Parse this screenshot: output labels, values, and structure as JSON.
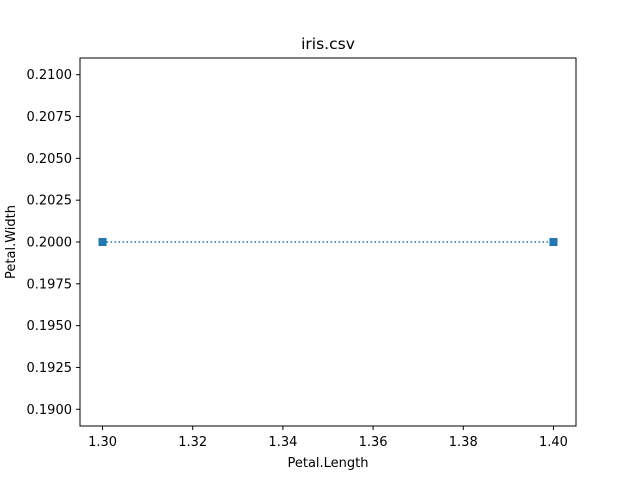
{
  "chart_data": {
    "type": "line",
    "title": "iris.csv",
    "xlabel": "Petal.Length",
    "ylabel": "Petal.Width",
    "xlim": [
      1.295,
      1.405
    ],
    "ylim": [
      0.189,
      0.211
    ],
    "xticks": [
      1.3,
      1.32,
      1.34,
      1.36,
      1.38,
      1.4
    ],
    "xtick_labels": [
      "1.30",
      "1.32",
      "1.34",
      "1.36",
      "1.38",
      "1.40"
    ],
    "yticks": [
      0.19,
      0.1925,
      0.195,
      0.1975,
      0.2,
      0.2025,
      0.205,
      0.2075,
      0.21
    ],
    "ytick_labels": [
      "0.1900",
      "0.1925",
      "0.1950",
      "0.1975",
      "0.2000",
      "0.2025",
      "0.2050",
      "0.2075",
      "0.2100"
    ],
    "grid": false,
    "series": [
      {
        "name": "Petal.Width",
        "x": [
          1.3,
          1.4
        ],
        "y": [
          0.2,
          0.2
        ],
        "color": "#1f77b4",
        "line_style": "dotted",
        "marker": "square"
      }
    ]
  }
}
